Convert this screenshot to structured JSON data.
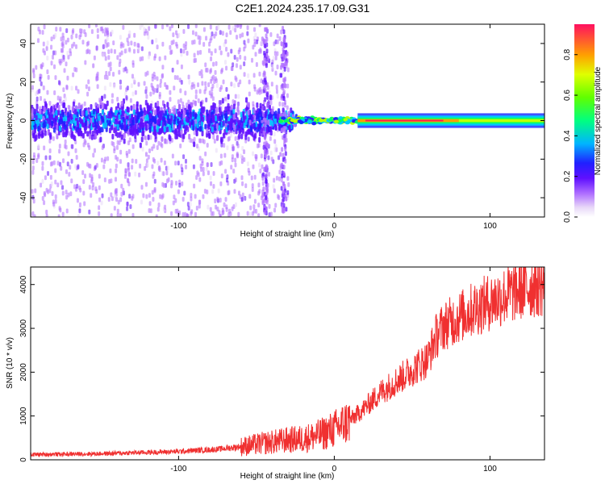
{
  "title": "C2E1.2024.235.17.09.G31",
  "colors": {
    "snr_line": "#f03030",
    "colormap": [
      "#e8d8f8",
      "#b070ff",
      "#6010ff",
      "#2020ff",
      "#00c8ff",
      "#00ff60",
      "#c0ff00",
      "#ffa000",
      "#ff2050"
    ]
  },
  "chart_data": [
    {
      "type": "heatmap",
      "xlabel": "Height of straight line (km)",
      "ylabel": "Frequency (Hz)",
      "xlim": [
        -195,
        135
      ],
      "ylim": [
        -50,
        50
      ],
      "xticks": [
        -100,
        0,
        100
      ],
      "yticks": [
        -40,
        -20,
        0,
        20,
        40
      ],
      "grid": false,
      "colorbar": {
        "label": "Normalized spectral amplitude",
        "range": [
          0.0,
          0.95
        ],
        "ticks": [
          0.0,
          0.2,
          0.4,
          0.6,
          0.8
        ]
      },
      "features": [
        {
          "x": [
            -195,
            -35
          ],
          "frequency_center": 0,
          "spread": "wide scatter to ±50 Hz",
          "amplitude": "0.1–0.4"
        },
        {
          "x": [
            -35,
            15
          ],
          "frequency_center": 0,
          "spread": "narrowing to ±5 Hz",
          "amplitude": "0.3–0.8"
        },
        {
          "x": [
            15,
            135
          ],
          "frequency_center": 0,
          "spread": "±3 Hz band",
          "amplitude": "peak ~0.9 near 0 Hz"
        }
      ]
    },
    {
      "type": "line",
      "xlabel": "Height of straight line (km)",
      "ylabel": "SNR (10 * v/v)",
      "xlim": [
        -195,
        135
      ],
      "ylim": [
        0,
        4400
      ],
      "xticks": [
        -100,
        0,
        100
      ],
      "yticks": [
        0,
        1000,
        2000,
        3000,
        4000
      ],
      "grid": false,
      "series": [
        {
          "x": [
            -195,
            -150,
            -100,
            -75,
            -60,
            -45,
            -30,
            -20,
            -10,
            0,
            10,
            20,
            30,
            40,
            50,
            60,
            65,
            70,
            80,
            90,
            100,
            110,
            120,
            130,
            135
          ],
          "values": [
            120,
            140,
            190,
            240,
            300,
            380,
            450,
            480,
            560,
            700,
            900,
            1200,
            1550,
            1800,
            2050,
            2300,
            2800,
            3050,
            3250,
            3450,
            3600,
            3750,
            3900,
            3980,
            4000
          ]
        }
      ]
    }
  ]
}
